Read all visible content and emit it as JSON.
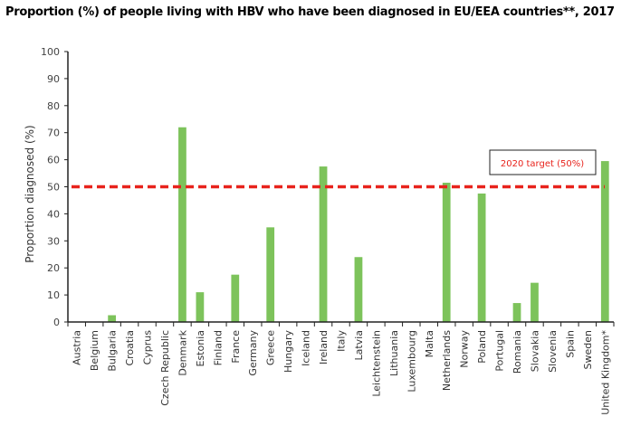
{
  "chart_data": {
    "type": "bar",
    "title": "Proportion (%) of people living with HBV who have been diagnosed in EU/EEA countries**, 2017",
    "xlabel": "",
    "ylabel": "Proportion diagnosed (%)",
    "ylim": [
      0,
      100
    ],
    "yticks": [
      0,
      10,
      20,
      30,
      40,
      50,
      60,
      70,
      80,
      90,
      100
    ],
    "grid": false,
    "categories": [
      "Austria",
      "Belgium",
      "Bulgaria",
      "Croatia",
      "Cyprus",
      "Czech Republic",
      "Denmark",
      "Estonia",
      "Finland",
      "France",
      "Germany",
      "Greece",
      "Hungary",
      "Iceland",
      "Ireland",
      "Italy",
      "Latvia",
      "Leichtenstein",
      "Lithuania",
      "Luxembourg",
      "Malta",
      "Netherlands",
      "Norway",
      "Poland",
      "Portugal",
      "Romania",
      "Slovakia",
      "Slovenia",
      "Spain",
      "Sweden",
      "United Kingdom*"
    ],
    "values": [
      null,
      null,
      2.5,
      null,
      null,
      null,
      72,
      11,
      null,
      17.5,
      null,
      35,
      null,
      null,
      57.5,
      null,
      24,
      null,
      null,
      null,
      null,
      51.5,
      null,
      47.5,
      null,
      7,
      14.5,
      null,
      null,
      null,
      59.5
    ],
    "bar_color": "#7dc35b",
    "target": {
      "value": 50,
      "label": "2020 target (50%)",
      "color": "#e8231c"
    }
  }
}
